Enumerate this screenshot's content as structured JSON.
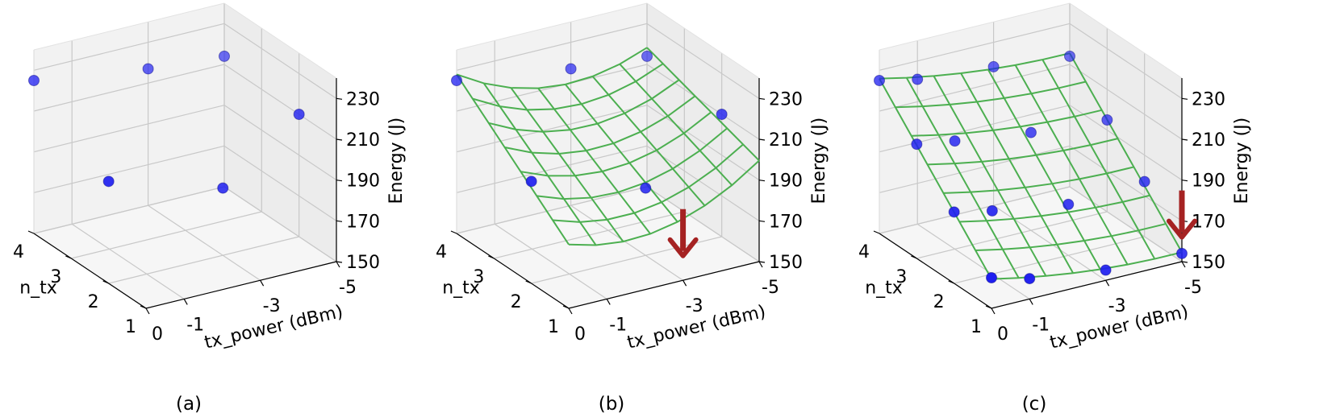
{
  "chart_data": [
    {
      "type": "scatter3d",
      "caption": "(a)",
      "xlabel": "tx_power (dBm)",
      "ylabel": "n_tx",
      "zlabel": "Energy (J)",
      "x_ticks": [
        "0",
        "-1",
        "-3",
        "-5"
      ],
      "y_ticks": [
        "1",
        "2",
        "3",
        "4"
      ],
      "z_ticks": [
        "150",
        "170",
        "190",
        "210",
        "230"
      ],
      "zlim": [
        150,
        240
      ],
      "points": [
        {
          "tx_power": 0,
          "n_tx": 4,
          "energy": 225
        },
        {
          "tx_power": 0,
          "n_tx": 2,
          "energy": 200
        },
        {
          "tx_power": -3,
          "n_tx": 4,
          "energy": 217
        },
        {
          "tx_power": -3,
          "n_tx": 2,
          "energy": 183
        },
        {
          "tx_power": -5,
          "n_tx": 4,
          "energy": 214
        },
        {
          "tx_power": -5,
          "n_tx": 2,
          "energy": 210
        }
      ],
      "surface": false,
      "arrow": false
    },
    {
      "type": "scatter3d",
      "caption": "(b)",
      "xlabel": "tx_power (dBm)",
      "ylabel": "n_tx",
      "zlabel": "Energy (J)",
      "x_ticks": [
        "0",
        "-1",
        "-3",
        "-5"
      ],
      "y_ticks": [
        "1",
        "2",
        "3",
        "4"
      ],
      "z_ticks": [
        "150",
        "170",
        "190",
        "210",
        "230"
      ],
      "zlim": [
        150,
        240
      ],
      "points": [
        {
          "tx_power": 0,
          "n_tx": 4,
          "energy": 225
        },
        {
          "tx_power": 0,
          "n_tx": 2,
          "energy": 200
        },
        {
          "tx_power": -3,
          "n_tx": 4,
          "energy": 217
        },
        {
          "tx_power": -3,
          "n_tx": 2,
          "energy": 183
        },
        {
          "tx_power": -5,
          "n_tx": 4,
          "energy": 214
        },
        {
          "tx_power": -5,
          "n_tx": 2,
          "energy": 210
        }
      ],
      "surface": true,
      "arrow": true,
      "arrow_at": {
        "tx_power": -3,
        "n_tx": 1
      }
    },
    {
      "type": "scatter3d",
      "caption": "(c)",
      "xlabel": "tx_power (dBm)",
      "ylabel": "n_tx",
      "zlabel": "Energy (J)",
      "x_ticks": [
        "0",
        "-1",
        "-3",
        "-5"
      ],
      "y_ticks": [
        "1",
        "2",
        "3",
        "4"
      ],
      "z_ticks": [
        "150",
        "170",
        "190",
        "210",
        "230"
      ],
      "zlim": [
        150,
        240
      ],
      "points": [
        {
          "tx_power": 0,
          "n_tx": 4,
          "energy": 225
        },
        {
          "tx_power": 0,
          "n_tx": 3,
          "energy": 206
        },
        {
          "tx_power": 0,
          "n_tx": 2,
          "energy": 185
        },
        {
          "tx_power": 0,
          "n_tx": 1,
          "energy": 165
        },
        {
          "tx_power": -1,
          "n_tx": 4,
          "energy": 221
        },
        {
          "tx_power": -1,
          "n_tx": 3,
          "energy": 203
        },
        {
          "tx_power": -1,
          "n_tx": 2,
          "energy": 181
        },
        {
          "tx_power": -1,
          "n_tx": 1,
          "energy": 160
        },
        {
          "tx_power": -3,
          "n_tx": 4,
          "energy": 218
        },
        {
          "tx_power": -3,
          "n_tx": 3,
          "energy": 198
        },
        {
          "tx_power": -3,
          "n_tx": 2,
          "energy": 175
        },
        {
          "tx_power": -3,
          "n_tx": 1,
          "energy": 155
        },
        {
          "tx_power": -5,
          "n_tx": 4,
          "energy": 214
        },
        {
          "tx_power": -5,
          "n_tx": 3,
          "energy": 195
        },
        {
          "tx_power": -5,
          "n_tx": 2,
          "energy": 177
        },
        {
          "tx_power": -5,
          "n_tx": 1,
          "energy": 154
        }
      ],
      "surface": true,
      "arrow": true,
      "arrow_at": {
        "tx_power": -5,
        "n_tx": 1
      }
    }
  ],
  "colors": {
    "points": "#1f1ff0",
    "surface": "#4caf50",
    "arrow": "#a52222",
    "grid": "#c8c8c8",
    "pane_side": "#ececec",
    "pane_back": "#f2f2f2",
    "pane_floor": "#f6f6f6"
  }
}
